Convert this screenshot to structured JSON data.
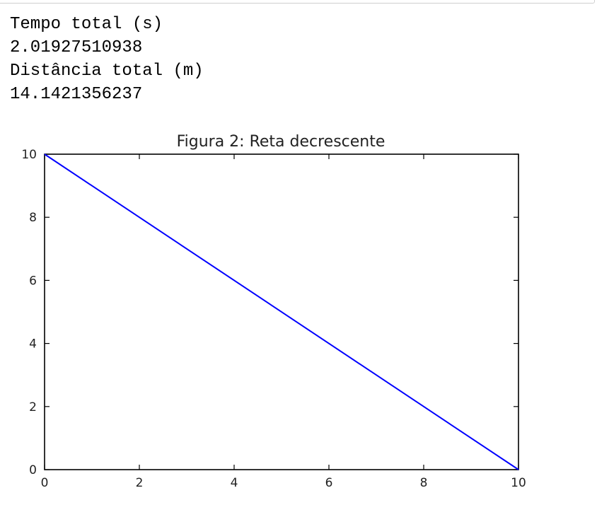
{
  "output": {
    "lines": [
      "Tempo total (s)",
      "2.01927510938",
      "Distância total (m)",
      "14.1421356237"
    ]
  },
  "chart_data": {
    "type": "line",
    "title": "Figura 2: Reta decrescente",
    "xlabel": "",
    "ylabel": "",
    "xlim": [
      0,
      10
    ],
    "ylim": [
      0,
      10
    ],
    "xticks": [
      0,
      2,
      4,
      6,
      8,
      10
    ],
    "yticks": [
      0,
      2,
      4,
      6,
      8,
      10
    ],
    "grid": false,
    "series": [
      {
        "color": "#0000ff",
        "x": [
          0,
          10
        ],
        "y": [
          10,
          0
        ]
      }
    ]
  }
}
